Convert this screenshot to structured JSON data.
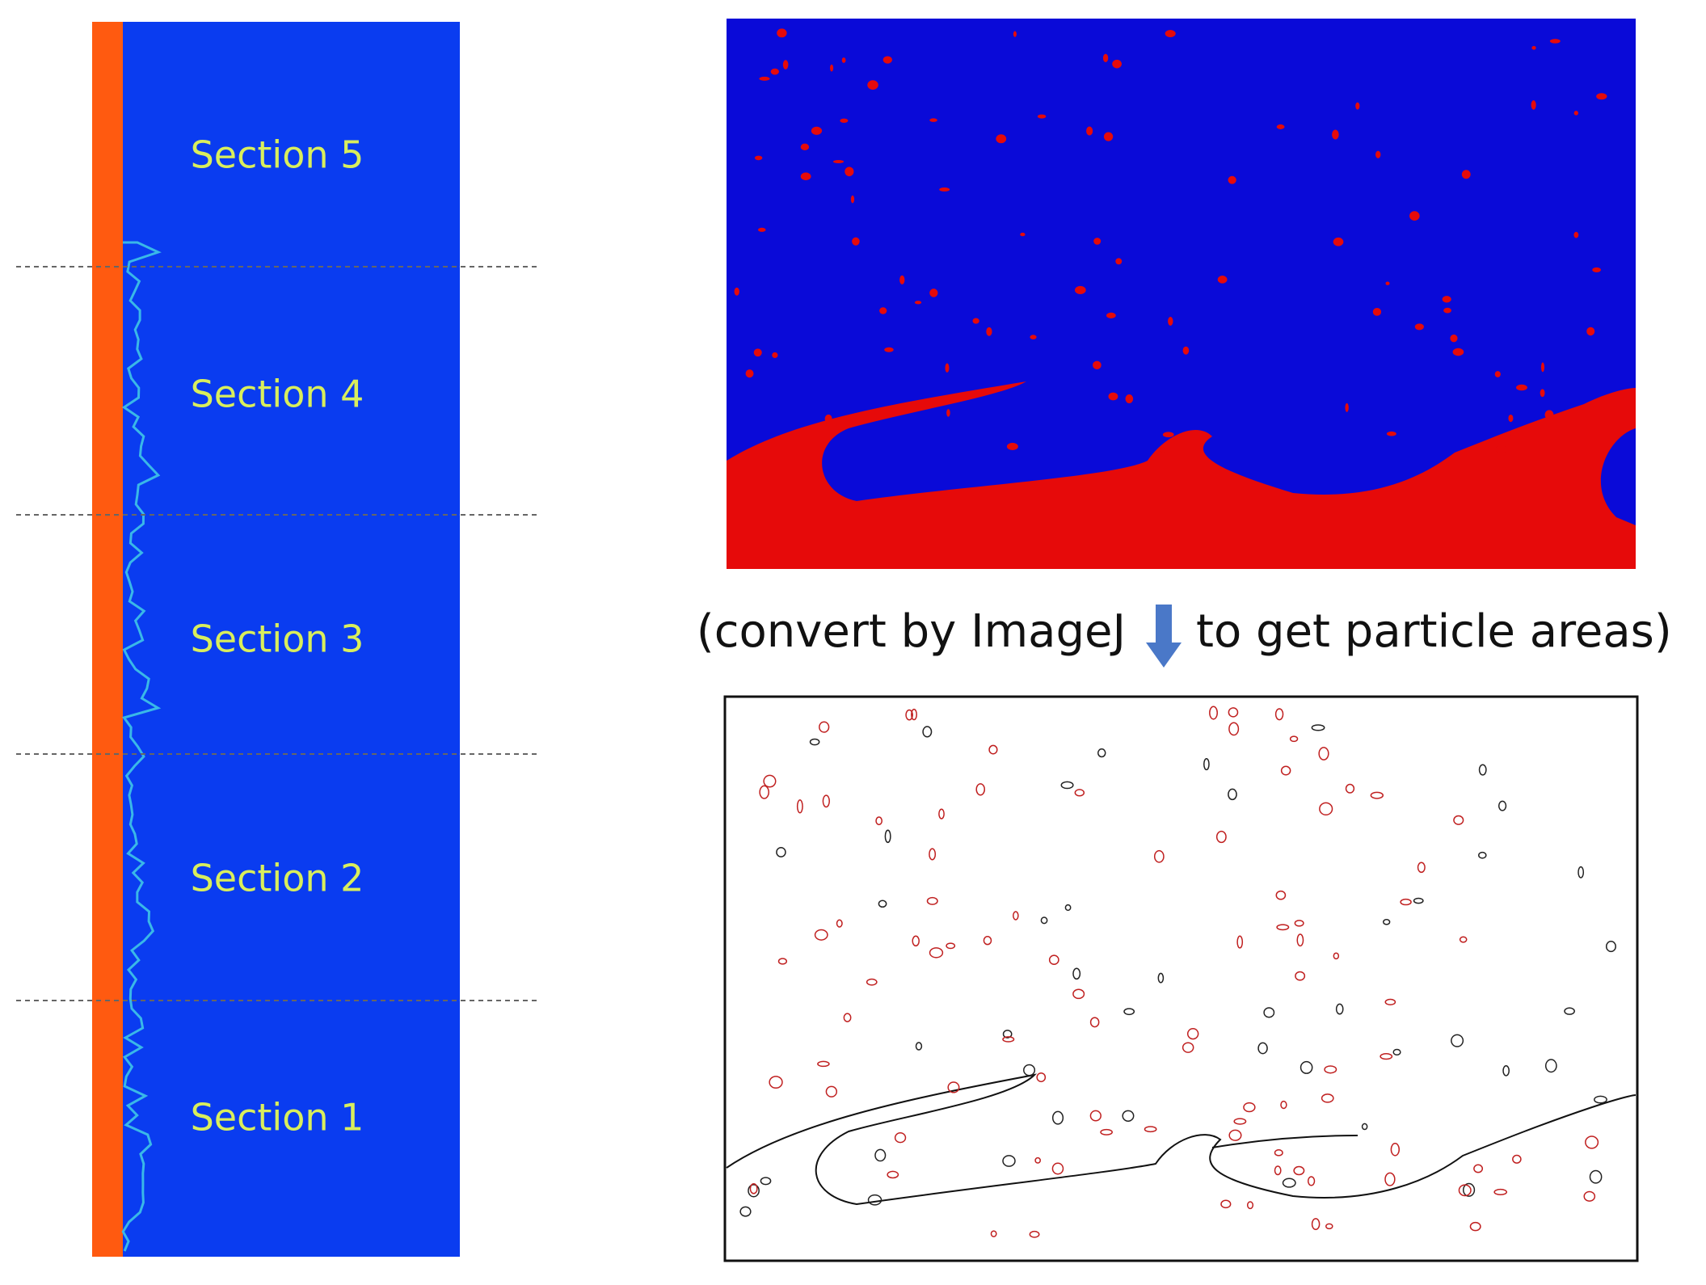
{
  "left_panel": {
    "sections": [
      "Section 5",
      "Section 4",
      "Section 3",
      "Section 2",
      "Section 1"
    ]
  },
  "caption": {
    "before_arrow": "(convert by ImageJ",
    "after_arrow": "to get particle areas)"
  }
}
